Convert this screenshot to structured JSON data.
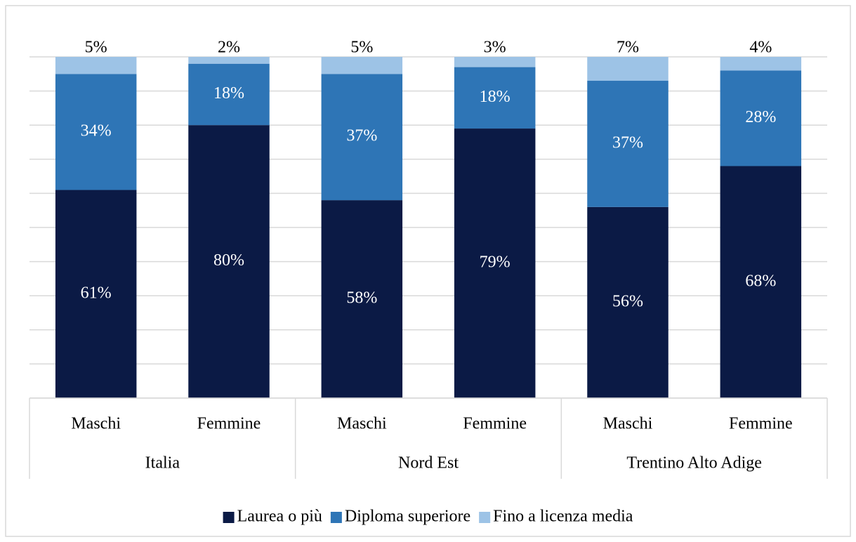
{
  "chart_data": {
    "type": "stacked_bar",
    "categories": [
      "Maschi",
      "Femmine",
      "Maschi",
      "Femmine",
      "Maschi",
      "Femmine"
    ],
    "groups": [
      "Italia",
      "Nord Est",
      "Trentino Alto Adige"
    ],
    "series": [
      {
        "name": "Laurea o più",
        "color": "#0b1a45",
        "values": [
          61,
          80,
          58,
          79,
          56,
          68
        ],
        "value_labels": [
          "61%",
          "80%",
          "58%",
          "79%",
          "56%",
          "68%"
        ]
      },
      {
        "name": "Diploma superiore",
        "color": "#2e75b6",
        "values": [
          34,
          18,
          37,
          18,
          37,
          28
        ],
        "value_labels": [
          "34%",
          "18%",
          "37%",
          "18%",
          "37%",
          "28%"
        ]
      },
      {
        "name": "Fino a licenza media",
        "color": "#9dc3e6",
        "values": [
          5,
          2,
          5,
          3,
          7,
          4
        ],
        "value_labels": [
          "5%",
          "2%",
          "5%",
          "3%",
          "7%",
          "4%"
        ]
      }
    ],
    "ylim": [
      0,
      100
    ],
    "yticks": [
      0,
      10,
      20,
      30,
      40,
      50,
      60,
      70,
      80,
      90,
      100
    ],
    "grid": true,
    "legend": "bottom"
  }
}
